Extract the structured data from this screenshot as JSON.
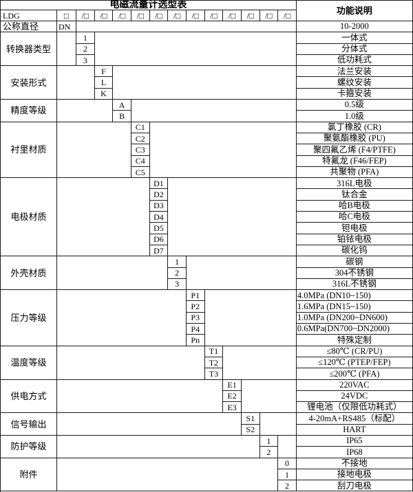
{
  "title": "电磁流量计选型表",
  "function_header": "功能说明",
  "colors": {
    "border": "#1a1a1a",
    "background": "#ffffff",
    "text": "#000000"
  },
  "model_row": {
    "label": "LDG",
    "base_box": "□",
    "slot_box": "/□",
    "slot_box_count": 12
  },
  "dn_row": {
    "label": "公称直径",
    "code": "DN",
    "desc": "10-2000"
  },
  "groups": [
    {
      "label": "转换器类型",
      "items": [
        {
          "code": "1",
          "desc": "一体式"
        },
        {
          "code": "2",
          "desc": "分体式"
        },
        {
          "code": "3",
          "desc": "低功耗式"
        }
      ]
    },
    {
      "label": "安装形式",
      "items": [
        {
          "code": "F",
          "desc": "法兰安装"
        },
        {
          "code": "L",
          "desc": "螺纹安装"
        },
        {
          "code": "K",
          "desc": "卡箍安装"
        }
      ]
    },
    {
      "label": "精度等级",
      "items": [
        {
          "code": "A",
          "desc": "0.5级"
        },
        {
          "code": "B",
          "desc": "1.0级"
        }
      ]
    },
    {
      "label": "衬里材质",
      "items": [
        {
          "code": "C1",
          "desc": "氯丁橡胶 (CR)"
        },
        {
          "code": "C2",
          "desc": "聚氨酯橡胶 (PU)"
        },
        {
          "code": "C3",
          "desc": "聚四氟乙烯 (F4/PTFE)"
        },
        {
          "code": "C4",
          "desc": "特氟龙 (F46/FEP)"
        },
        {
          "code": "C5",
          "desc": "共聚物 (PFA)"
        }
      ]
    },
    {
      "label": "电极材质",
      "items": [
        {
          "code": "D1",
          "desc": "316L电极"
        },
        {
          "code": "D2",
          "desc": "钛合金"
        },
        {
          "code": "D3",
          "desc": "哈B电极"
        },
        {
          "code": "D4",
          "desc": "哈C电极"
        },
        {
          "code": "D5",
          "desc": "钽电极"
        },
        {
          "code": "D6",
          "desc": "铂铱电极"
        },
        {
          "code": "D7",
          "desc": "碳化钨"
        }
      ]
    },
    {
      "label": "外壳材质",
      "items": [
        {
          "code": "1",
          "desc": "碳钢"
        },
        {
          "code": "2",
          "desc": "304不锈钢"
        },
        {
          "code": "3",
          "desc": "316L不锈钢"
        }
      ]
    },
    {
      "label": "压力等级",
      "items": [
        {
          "code": "P1",
          "desc": "4.0MPa (DN10~150)",
          "align": "left"
        },
        {
          "code": "P2",
          "desc": "1.6MPa (DN15~150)",
          "align": "left"
        },
        {
          "code": "P3",
          "desc": "1.0MPa (DN200~DN600)",
          "align": "left"
        },
        {
          "code": "P4",
          "desc": "0.6MPa(DN700~DN2000)",
          "align": "left"
        },
        {
          "code": "Pn",
          "desc": "特殊定制"
        }
      ]
    },
    {
      "label": "温度等级",
      "items": [
        {
          "code": "T1",
          "desc": "≤80℃ (CR/PU)"
        },
        {
          "code": "T2",
          "desc": "≤120℃ (PTEP/FEP)"
        },
        {
          "code": "T3",
          "desc": "≤200℃ (PFA)"
        }
      ]
    },
    {
      "label": "供电方式",
      "items": [
        {
          "code": "E1",
          "desc": "220VAC"
        },
        {
          "code": "E2",
          "desc": "24VDC"
        },
        {
          "code": "E3",
          "desc": "锂电池（仅限低功耗式）"
        }
      ]
    },
    {
      "label": "信号输出",
      "items": [
        {
          "code": "S1",
          "desc": "4-20mA+RS485（标配）"
        },
        {
          "code": "S2",
          "desc": "HART"
        }
      ]
    },
    {
      "label": "防护等级",
      "items": [
        {
          "code": "1",
          "desc": "IP65"
        },
        {
          "code": "2",
          "desc": "IP68"
        }
      ]
    },
    {
      "label": "附件",
      "items": [
        {
          "code": "0",
          "desc": "不接地"
        },
        {
          "code": "1",
          "desc": "接地电极"
        },
        {
          "code": "2",
          "desc": "刮刀电极"
        }
      ]
    }
  ]
}
